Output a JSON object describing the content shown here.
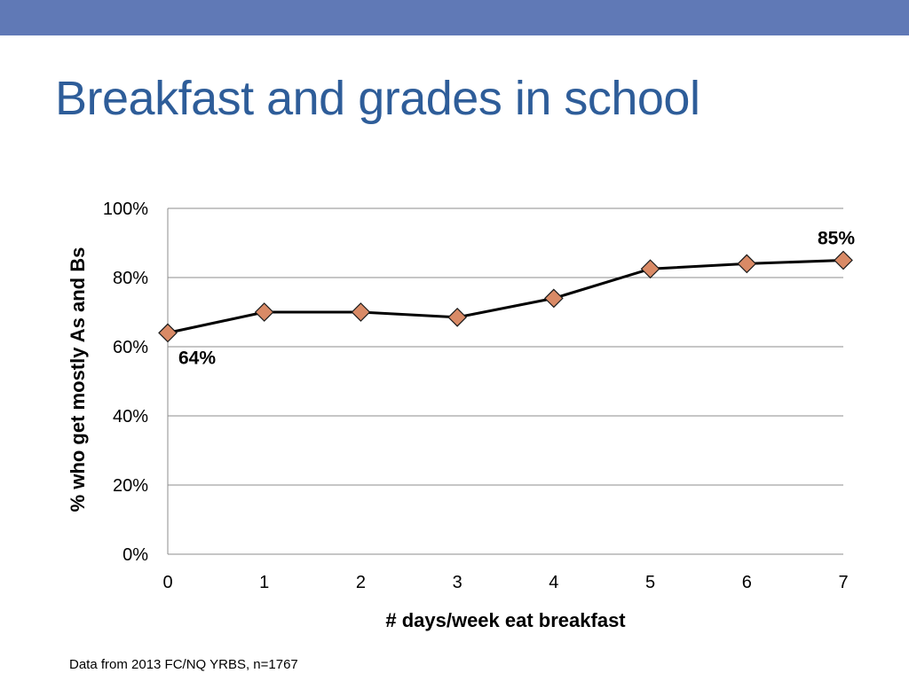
{
  "slide": {
    "title": "Breakfast and grades in school",
    "source_note": "Data from 2013 FC/NQ YRBS, n=1767"
  },
  "colors": {
    "top_bar": "#6079b6",
    "title": "#2e5d99",
    "line": "#000000",
    "marker_fill": "#d98a66",
    "marker_stroke": "#1a1a1a",
    "gridline": "#8c8c8c"
  },
  "chart_data": {
    "type": "line",
    "title": "",
    "xlabel": "# days/week eat breakfast",
    "ylabel": "% who get mostly As and Bs",
    "x": [
      0,
      1,
      2,
      3,
      4,
      5,
      6,
      7
    ],
    "x_tick_labels": [
      "0",
      "1",
      "2",
      "3",
      "4",
      "5",
      "6",
      "7"
    ],
    "y_tick_labels": [
      "0%",
      "20%",
      "40%",
      "60%",
      "80%",
      "100%"
    ],
    "ylim": [
      0,
      100
    ],
    "y_ticks": [
      0,
      20,
      40,
      60,
      80,
      100
    ],
    "grid": true,
    "legend": "none",
    "marker": "diamond",
    "series": [
      {
        "values": [
          64,
          70,
          70,
          68.5,
          74,
          82.5,
          84,
          85
        ]
      }
    ],
    "data_labels": [
      {
        "index": 0,
        "text": "64%"
      },
      {
        "index": 7,
        "text": "85%"
      }
    ]
  }
}
